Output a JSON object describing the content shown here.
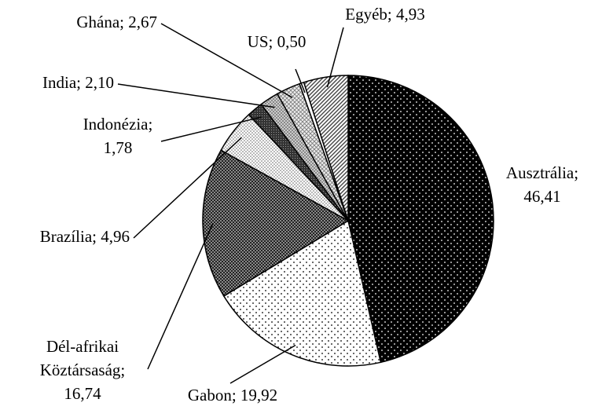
{
  "chart_data": {
    "type": "pie",
    "values": [
      46.41,
      19.92,
      16.74,
      4.96,
      1.78,
      2.1,
      2.67,
      0.5,
      4.93
    ],
    "value_labels": [
      "Ausztrália;\n46,41",
      "Gabon; 19,92",
      "Dél-afrikai\nKöztársaság;\n16,74",
      "Brazília; 4,96",
      "Indonézia;\n1,78",
      "India; 2,10",
      "Ghána; 2,67",
      "US; 0,50",
      "Egyéb; 4,93"
    ],
    "patterns": [
      "black-dots",
      "white-dots",
      "dark-check",
      "light-dots",
      "dark",
      "grey-cross",
      "light-grid",
      "white",
      "stripes"
    ]
  }
}
